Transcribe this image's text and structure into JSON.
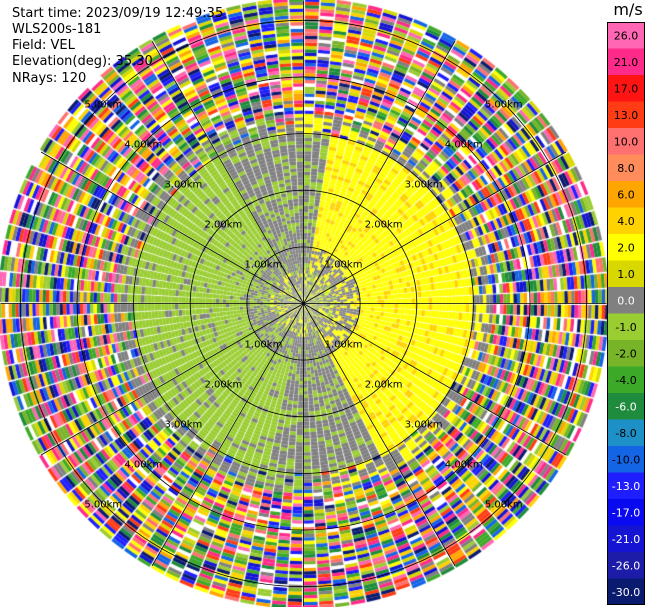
{
  "header": {
    "start_time": "Start time: 2023/09/19 12:49:35",
    "instrument": "WLS200s-181",
    "field": "Field: VEL",
    "elevation": "Elevation(deg): 35.30",
    "nrays": "NRays: 120"
  },
  "chart_data": {
    "type": "heatmap",
    "projection": "polar-ppi",
    "field": "VEL",
    "units": "m/s",
    "n_rays": 120,
    "elevation_deg": 35.3,
    "range_rings_km": [
      1.0,
      2.0,
      3.0,
      4.0,
      5.0
    ],
    "ring_labels": [
      "1.00km",
      "2.00km",
      "3.00km",
      "4.00km",
      "5.00km"
    ],
    "azimuth_lines_deg": [
      0,
      30,
      60,
      90,
      120,
      150,
      180,
      210,
      240,
      270,
      300,
      330
    ],
    "colorbar": {
      "unit_label": "m/s",
      "ticks": [
        "-30.0",
        "-26.0",
        "-21.0",
        "-17.0",
        "-13.0",
        "-10.0",
        "-8.0",
        "-6.0",
        "-4.0",
        "-2.0",
        "-1.0",
        "0.0",
        "1.0",
        "2.0",
        "4.0",
        "6.0",
        "8.0",
        "10.0",
        "13.0",
        "17.0",
        "21.0",
        "26.0"
      ],
      "colors": [
        "#0a1a6e",
        "#1c1ca8",
        "#1414d2",
        "#0a0af0",
        "#1e1eff",
        "#1464e6",
        "#1e90c8",
        "#1e8c3c",
        "#3caa28",
        "#78b428",
        "#9acd32",
        "#808080",
        "#d8d800",
        "#ffff00",
        "#ffd200",
        "#ffa500",
        "#ff8c5a",
        "#ff7070",
        "#ff3c14",
        "#ff1414",
        "#ff2a8a",
        "#ff66b4"
      ]
    },
    "pattern": {
      "inner_noise_km": 0.55,
      "grey_to_km": 1.75,
      "signal_to_km": 2.95,
      "transition_to_km": 3.3,
      "outer_km": 5.35,
      "noise_colors": [
        "#ff2a8a",
        "#ff66b4",
        "#1414d2",
        "#0a1a6e",
        "#1e1eff",
        "#78b428",
        "#9acd32",
        "#ffff00",
        "#ffd200",
        "#ffa500",
        "#ff3c14",
        "#ff7070",
        "#1e8c3c",
        "#3caa28",
        "#1464e6",
        "#ffffff",
        "#808080",
        "#d8d800"
      ],
      "positive_color": "#ffff00",
      "positive_edge_color": "#ffd200",
      "negative_color": "#9acd32",
      "zero_color": "#808080"
    }
  }
}
